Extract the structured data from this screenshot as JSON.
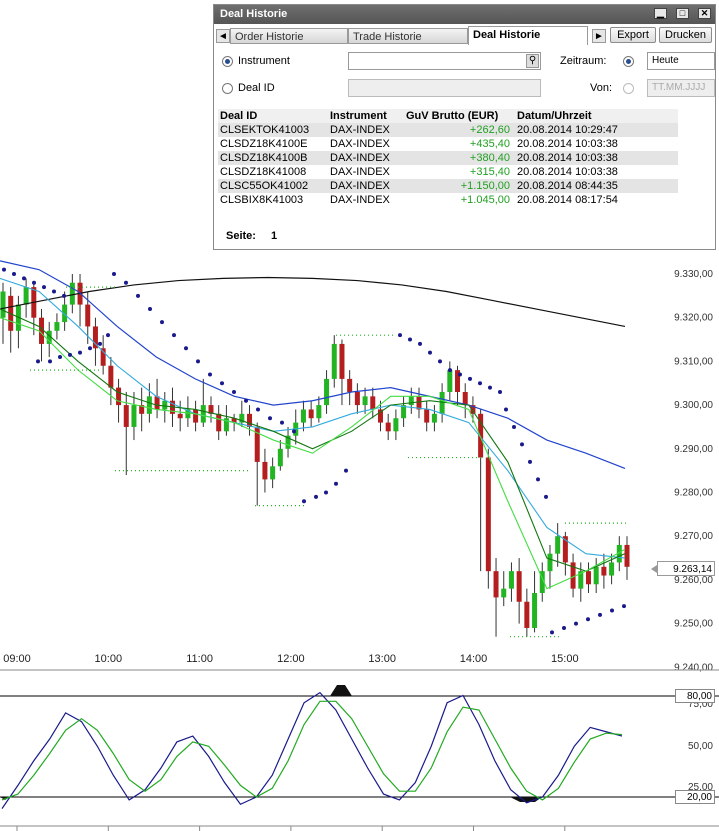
{
  "window": {
    "title": "Deal Historie",
    "controls": {
      "minimize": "▁",
      "maximize": "□",
      "close": "✕"
    },
    "tabs": [
      {
        "label": "Order Historie",
        "active": false
      },
      {
        "label": "Trade Historie",
        "active": false
      },
      {
        "label": "Deal Historie",
        "active": true
      }
    ],
    "nav_left": "◄",
    "nav_right": "►",
    "export_label": "Export",
    "print_label": "Drucken"
  },
  "filters": {
    "instrument_label": "Instrument",
    "instrument_value": "",
    "deal_id_label": "Deal ID",
    "deal_id_value": "",
    "zeitraum_label": "Zeitraum:",
    "zeitraum_value": "Heute",
    "von_label": "Von:",
    "von_placeholder": "TT.MM.JJJJ"
  },
  "table": {
    "columns": [
      "Deal ID",
      "Instrument",
      "GuV Brutto (EUR)",
      "Datum/Uhrzeit"
    ],
    "rows": [
      {
        "deal_id": "CLSEKTOK41003",
        "instrument": "DAX-INDEX",
        "guv": "+262,60",
        "datum": "20.08.2014 10:29:47"
      },
      {
        "deal_id": "CLSDZ18K4100E",
        "instrument": "DAX-INDEX",
        "guv": "+435,40",
        "datum": "20.08.2014 10:03:38"
      },
      {
        "deal_id": "CLSDZ18K4100B",
        "instrument": "DAX-INDEX",
        "guv": "+380,40",
        "datum": "20.08.2014 10:03:38"
      },
      {
        "deal_id": "CLSDZ18K41008",
        "instrument": "DAX-INDEX",
        "guv": "+315,40",
        "datum": "20.08.2014 10:03:38"
      },
      {
        "deal_id": "CLSC55OK41002",
        "instrument": "DAX-INDEX",
        "guv": "+1.150,00",
        "datum": "20.08.2014 08:44:35"
      },
      {
        "deal_id": "CLSBIX8K41003",
        "instrument": "DAX-INDEX",
        "guv": "+1.045,00",
        "datum": "20.08.2014 08:17:54"
      }
    ],
    "page_label": "Seite:",
    "page_number": "1"
  },
  "price_chart": {
    "y_labels": [
      "9.330,00",
      "9.320,00",
      "9.310,00",
      "9.300,00",
      "9.290,00",
      "9.280,00",
      "9.270,00",
      "9.260,00",
      "9.250,00",
      "9.240,00"
    ],
    "time_labels": [
      "09:00",
      "10:00",
      "11:00",
      "12:00",
      "13:00",
      "14:00",
      "15:00"
    ],
    "last_price": "9.263,14",
    "colors": {
      "up": "#22b422",
      "down": "#b41e1e",
      "psar": "#1a1a8c",
      "ma_blue": "#2244cc",
      "ma_cyan": "#33aadd",
      "ma_black": "#111111",
      "ma_green_dark": "#117711",
      "ma_green_light": "#44dd44"
    }
  },
  "oscillator": {
    "upper_level": "80,00",
    "lower_level": "20,00",
    "mid_label": "50,00",
    "tick_75": "75,00",
    "tick_25": "25,00",
    "colors": {
      "main": "#1a1a8c",
      "signal": "#22aa22"
    }
  },
  "chart_data": {
    "type": "line",
    "title": "",
    "x": [
      "09:00",
      "10:00",
      "11:00",
      "12:00",
      "13:00",
      "14:00",
      "15:00"
    ],
    "series": [
      {
        "name": "",
        "values": [
          9327,
          9296,
          9298,
          9286,
          9302,
          9296,
          9263.14
        ]
      }
    ],
    "ylim": [
      9240,
      9335
    ],
    "grid": false
  }
}
